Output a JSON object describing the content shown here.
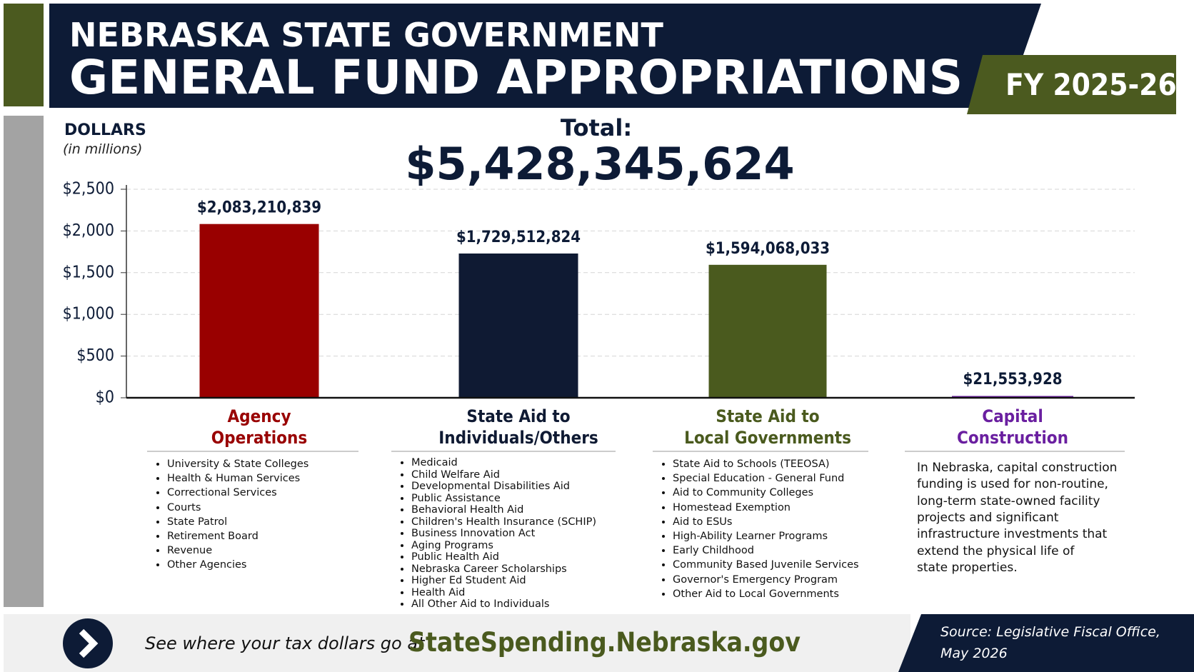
{
  "header": {
    "line1": "NEBRASKA STATE GOVERNMENT",
    "line2": "GENERAL FUND APPROPRIATIONS",
    "badge": "FY 2025-26"
  },
  "chart_data": {
    "type": "bar",
    "axis_label": "DOLLARS",
    "axis_sublabel": "(in millions)",
    "total_label": "Total:",
    "total_text": "$5,428,345,624",
    "categories": [
      "Agency\nOperations",
      "State Aid to\nIndividuals/Others",
      "State Aid to\nLocal Governments",
      "Capital\nConstruction"
    ],
    "values": [
      2083.210839,
      1729.512824,
      1594.068033,
      21.553928
    ],
    "value_labels": [
      "$2,083,210,839",
      "$1,729,512,824",
      "$1,594,068,033",
      "$21,553,928"
    ],
    "colors": [
      "#990000",
      "#0f1a33",
      "#4a5a1e",
      "#6a1fa0"
    ],
    "ylim": [
      0,
      2500
    ],
    "yticks": [
      {
        "value": 0,
        "label": "$0"
      },
      {
        "value": 500,
        "label": "$500"
      },
      {
        "value": 1000,
        "label": "$1,000"
      },
      {
        "value": 1500,
        "label": "$1,500"
      },
      {
        "value": 2000,
        "label": "$2,000"
      },
      {
        "value": 2500,
        "label": "$2,500"
      }
    ],
    "grid": true
  },
  "details": [
    {
      "items": [
        "University & State Colleges",
        "Health & Human Services",
        "Correctional Services",
        "Courts",
        "State Patrol",
        "Retirement Board",
        "Revenue",
        "Other Agencies"
      ]
    },
    {
      "items": [
        "Medicaid",
        "Child Welfare Aid",
        "Developmental Disabilities Aid",
        "Public Assistance",
        "Behavioral Health Aid",
        "Children's Health Insurance (SCHIP)",
        "Business Innovation Act",
        "Aging Programs",
        "Public Health Aid",
        "Nebraska Career Scholarships",
        "Higher Ed Student Aid",
        "Health Aid",
        "All Other Aid to Individuals"
      ]
    },
    {
      "items": [
        "State Aid to Schools (TEEOSA)",
        "Special Education - General Fund",
        "Aid to Community Colleges",
        "Homestead Exemption",
        "Aid to ESUs",
        "High-Ability Learner Programs",
        "Early Childhood",
        "Community Based Juvenile Services",
        "Governor's Emergency Program",
        "Other Aid to Local Governments"
      ]
    },
    {
      "lines": [
        "In Nebraska, capital construction",
        "funding is used for non-routine,",
        "long-term state-owned facility",
        "projects and significant",
        "infrastructure investments that",
        "extend the physical life of",
        "state properties."
      ]
    }
  ],
  "footer": {
    "prompt": "See where your tax dollars go at",
    "url": "StateSpending.Nebraska.gov",
    "source_line1": "Source: Legislative Fiscal Office,",
    "source_line2": "May 2026"
  }
}
